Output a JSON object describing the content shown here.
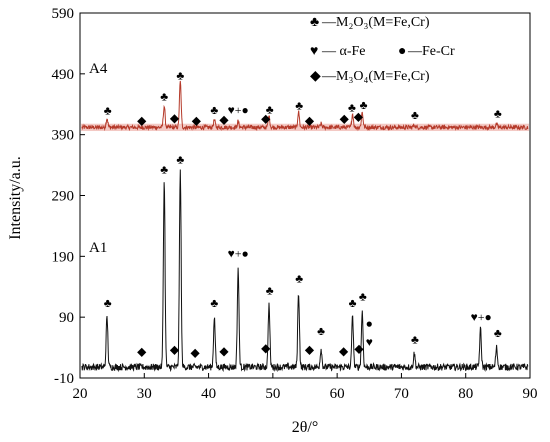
{
  "chart_data": {
    "type": "line",
    "xlabel": "2θ/°",
    "ylabel": "Intensity/a.u.",
    "xlim": [
      20,
      90
    ],
    "ylim": [
      -10,
      590
    ],
    "x_ticks": [
      "20",
      "30",
      "40",
      "50",
      "60",
      "70",
      "80",
      "90"
    ],
    "y_ticks": [
      "-10",
      "90",
      "190",
      "290",
      "390",
      "490",
      "590"
    ],
    "legend": [
      {
        "symbol": "♣",
        "text": "—M₂O₃(M=Fe,Cr)"
      },
      {
        "symbol": "♥",
        "text": "— α-Fe",
        "symbol2": "●",
        "text2": "—Fe-Cr"
      },
      {
        "symbol": "◆",
        "text": "—M₃O₄(M=Fe,Cr)"
      }
    ],
    "series": [
      {
        "name": "A4",
        "color": "#b53a2a",
        "baseline": 402,
        "peaks": [
          [
            24.2,
            15
          ],
          [
            33.1,
            35
          ],
          [
            35.6,
            75
          ],
          [
            40.9,
            12
          ],
          [
            44.6,
            10
          ],
          [
            49.4,
            18
          ],
          [
            54.0,
            25
          ],
          [
            57.5,
            6
          ],
          [
            62.4,
            22
          ],
          [
            63.9,
            25
          ],
          [
            72.0,
            4
          ],
          [
            84.8,
            5
          ]
        ]
      },
      {
        "name": "A1",
        "color": "#111111",
        "baseline": 8,
        "peaks": [
          [
            24.2,
            82
          ],
          [
            33.1,
            305
          ],
          [
            35.6,
            322
          ],
          [
            40.9,
            82
          ],
          [
            44.6,
            163
          ],
          [
            49.4,
            102
          ],
          [
            54.0,
            122
          ],
          [
            57.5,
            30
          ],
          [
            62.4,
            82
          ],
          [
            63.9,
            92
          ],
          [
            72.0,
            22
          ],
          [
            82.3,
            62
          ],
          [
            84.8,
            32
          ]
        ]
      }
    ],
    "annotations": [
      {
        "text": "♣",
        "x": 24.3,
        "y": 423
      },
      {
        "text": "◆",
        "x": 29.6,
        "y": 407
      },
      {
        "text": "♣",
        "x": 33.1,
        "y": 446
      },
      {
        "text": "◆",
        "x": 34.7,
        "y": 411
      },
      {
        "text": "♣",
        "x": 35.6,
        "y": 481
      },
      {
        "text": "◆",
        "x": 38.1,
        "y": 407
      },
      {
        "text": "♣",
        "x": 40.9,
        "y": 424
      },
      {
        "text": "◆",
        "x": 42.4,
        "y": 408
      },
      {
        "text": "♥+●",
        "x": 44.6,
        "y": 424
      },
      {
        "text": "◆",
        "x": 48.9,
        "y": 410
      },
      {
        "text": "♣",
        "x": 49.5,
        "y": 425
      },
      {
        "text": "♣",
        "x": 54.1,
        "y": 431
      },
      {
        "text": "◆",
        "x": 55.7,
        "y": 407
      },
      {
        "text": "◆",
        "x": 61.1,
        "y": 410
      },
      {
        "text": "♣",
        "x": 62.3,
        "y": 428
      },
      {
        "text": "◆",
        "x": 63.3,
        "y": 413
      },
      {
        "text": "♣",
        "x": 64.1,
        "y": 432
      },
      {
        "text": "♣",
        "x": 72.1,
        "y": 416
      },
      {
        "text": "♣",
        "x": 85.0,
        "y": 418
      },
      {
        "text": "♣",
        "x": 24.3,
        "y": 107
      },
      {
        "text": "◆",
        "x": 29.6,
        "y": 27
      },
      {
        "text": "♣",
        "x": 33.1,
        "y": 326
      },
      {
        "text": "◆",
        "x": 34.7,
        "y": 30
      },
      {
        "text": "♣",
        "x": 35.6,
        "y": 343
      },
      {
        "text": "◆",
        "x": 37.9,
        "y": 25
      },
      {
        "text": "♣",
        "x": 40.9,
        "y": 107
      },
      {
        "text": "◆",
        "x": 42.4,
        "y": 28
      },
      {
        "text": "♥+●",
        "x": 44.6,
        "y": 188
      },
      {
        "text": "◆",
        "x": 48.9,
        "y": 33
      },
      {
        "text": "♣",
        "x": 49.5,
        "y": 127
      },
      {
        "text": "♣",
        "x": 54.1,
        "y": 147
      },
      {
        "text": "◆",
        "x": 55.7,
        "y": 30
      },
      {
        "text": "♣",
        "x": 57.5,
        "y": 61
      },
      {
        "text": "◆",
        "x": 61.0,
        "y": 28
      },
      {
        "text": "♣",
        "x": 62.4,
        "y": 107
      },
      {
        "text": "♣",
        "x": 64.0,
        "y": 117
      },
      {
        "text": "◆",
        "x": 63.4,
        "y": 32
      },
      {
        "text": "●",
        "x": 65.0,
        "y": 73
      },
      {
        "text": "♥",
        "x": 65.0,
        "y": 43
      },
      {
        "text": "♣",
        "x": 72.1,
        "y": 47
      },
      {
        "text": "♥+●",
        "x": 82.4,
        "y": 84
      },
      {
        "text": "♣",
        "x": 85.0,
        "y": 57
      }
    ]
  }
}
